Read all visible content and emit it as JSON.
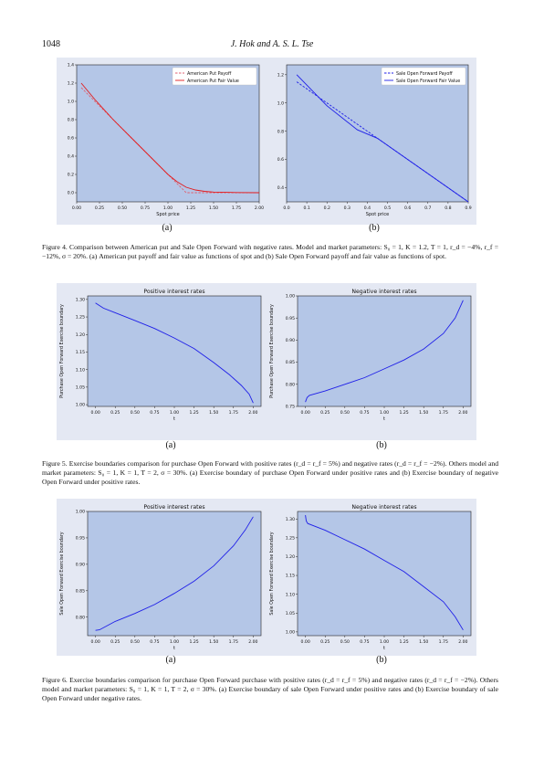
{
  "header": {
    "page_number": "1048",
    "running_head": "J. Hok and A. S. L. Tse"
  },
  "figures": [
    {
      "caption": "Figure 4. Comparison between American put and Sale Open Forward with negative rates. Model and market parameters: S₀ = 1, K = 1.2, T = 1, r_d = −4%, r_f = −12%, σ = 20%. (a) American put payoff and fair value as functions of spot and (b) Sale Open Forward payoff and fair value as functions of spot.",
      "sublabels": [
        "(a)",
        "(b)"
      ]
    },
    {
      "caption": "Figure 5. Exercise boundaries comparison for purchase Open Forward with positive rates (r_d = r_f = 5%) and negative rates (r_d = r_f = −2%). Others model and market parameters: S₀ = 1, K = 1, T = 2, σ = 30%. (a) Exercise boundary of purchase Open Forward under positive rates and (b) Exercise boundary of negative Open Forward under positive rates.",
      "sublabels": [
        "(a)",
        "(b)"
      ]
    },
    {
      "caption": "Figure 6. Exercise boundaries comparison for purchase Open Forward purchase with positive rates (r_d = r_f = 5%) and negative rates (r_d = r_f = −2%). Others model and market parameters: S₀ = 1, K = 1, T = 2, σ = 30%. (a) Exercise boundary of sale Open Forward under positive rates and (b) Exercise boundary of sale Open Forward under negative rates.",
      "sublabels": [
        "(a)",
        "(b)"
      ]
    }
  ],
  "colors": {
    "plot_bg": "#b4c6e7",
    "panel_bg": "#e4e8f3",
    "red": "#e31a1c",
    "blue": "#1f1fe8"
  },
  "chart_data": [
    {
      "id": "f4a",
      "type": "line",
      "title": "",
      "xlabel": "Spot price",
      "ylabel": "",
      "xlim": [
        0,
        2
      ],
      "ylim": [
        -0.1,
        1.4
      ],
      "xticks": [
        "0.00",
        "0.25",
        "0.50",
        "0.75",
        "1.00",
        "1.25",
        "1.50",
        "1.75",
        "2.00"
      ],
      "xtick_values": [
        0,
        0.25,
        0.5,
        0.75,
        1,
        1.25,
        1.5,
        1.75,
        2
      ],
      "yticks": [
        "0.0",
        "0.2",
        "0.4",
        "0.6",
        "0.8",
        "1.0",
        "1.2",
        "1.4"
      ],
      "ytick_values": [
        0,
        0.2,
        0.4,
        0.6,
        0.8,
        1,
        1.2,
        1.4
      ],
      "legend": "top-right",
      "series": [
        {
          "name": "American Put Payoff",
          "color": "#e06070",
          "dash": true,
          "x": [
            0.05,
            0.3,
            0.6,
            0.9,
            1.1,
            1.2,
            1.4,
            1.7,
            2.0
          ],
          "y": [
            1.15,
            0.9,
            0.6,
            0.3,
            0.1,
            0.0,
            0.0,
            0.0,
            0.0
          ]
        },
        {
          "name": "American Put Fair Value",
          "color": "#e31a1c",
          "dash": false,
          "x": [
            0.05,
            0.2,
            0.4,
            0.6,
            0.8,
            1.0,
            1.1,
            1.2,
            1.3,
            1.4,
            1.5,
            1.75,
            2.0
          ],
          "y": [
            1.2,
            1.02,
            0.8,
            0.6,
            0.4,
            0.2,
            0.12,
            0.06,
            0.03,
            0.015,
            0.007,
            0.002,
            0.0
          ]
        }
      ]
    },
    {
      "id": "f4b",
      "type": "line",
      "title": "",
      "xlabel": "Spot price",
      "ylabel": "",
      "xlim": [
        0,
        0.9
      ],
      "ylim": [
        0.3,
        1.27
      ],
      "xticks": [
        "0.0",
        "0.1",
        "0.2",
        "0.3",
        "0.4",
        "0.5",
        "0.6",
        "0.7",
        "0.8",
        "0.9"
      ],
      "xtick_values": [
        0,
        0.1,
        0.2,
        0.3,
        0.4,
        0.5,
        0.6,
        0.7,
        0.8,
        0.9
      ],
      "yticks": [
        "0.4",
        "0.6",
        "0.8",
        "1.0",
        "1.2"
      ],
      "ytick_values": [
        0.4,
        0.6,
        0.8,
        1.0,
        1.2
      ],
      "legend": "top-right",
      "series": [
        {
          "name": "Sale Open Forward Payoff",
          "color": "#1f1fe8",
          "dash": true,
          "x": [
            0.05,
            0.45,
            0.9
          ],
          "y": [
            1.15,
            0.75,
            0.3
          ]
        },
        {
          "name": "Sale Open Forward Fair Value",
          "color": "#1f1fe8",
          "dash": false,
          "x": [
            0.05,
            0.2,
            0.35,
            0.45,
            0.6,
            0.75,
            0.9
          ],
          "y": [
            1.2,
            0.98,
            0.81,
            0.75,
            0.6,
            0.45,
            0.3
          ]
        }
      ]
    },
    {
      "id": "f5a",
      "type": "line",
      "title": "Positive interest rates",
      "xlabel": "t",
      "ylabel": "Purchase Open Forward Exercise boundary",
      "xlim": [
        -0.1,
        2.1
      ],
      "ylim": [
        0.995,
        1.31
      ],
      "xticks": [
        "0.00",
        "0.25",
        "0.50",
        "0.75",
        "1.00",
        "1.25",
        "1.50",
        "1.75",
        "2.00"
      ],
      "xtick_values": [
        0,
        0.25,
        0.5,
        0.75,
        1,
        1.25,
        1.5,
        1.75,
        2
      ],
      "yticks": [
        "1.00",
        "1.05",
        "1.10",
        "1.15",
        "1.20",
        "1.25",
        "1.30"
      ],
      "ytick_values": [
        1.0,
        1.05,
        1.1,
        1.15,
        1.2,
        1.25,
        1.3
      ],
      "series": [
        {
          "name": "",
          "color": "#1f1fe8",
          "dash": false,
          "x": [
            0,
            0.1,
            0.25,
            0.5,
            0.75,
            1.0,
            1.25,
            1.5,
            1.7,
            1.85,
            1.95,
            2.0
          ],
          "y": [
            1.29,
            1.275,
            1.262,
            1.24,
            1.217,
            1.19,
            1.16,
            1.12,
            1.085,
            1.055,
            1.03,
            1.005
          ]
        }
      ]
    },
    {
      "id": "f5b",
      "type": "line",
      "title": "Negative interest rates",
      "xlabel": "t",
      "ylabel": "Purchase Open Forward Exercise boundary",
      "xlim": [
        -0.1,
        2.1
      ],
      "ylim": [
        0.75,
        1.0
      ],
      "xticks": [
        "0.00",
        "0.25",
        "0.50",
        "0.75",
        "1.00",
        "1.25",
        "1.50",
        "1.75",
        "2.00"
      ],
      "xtick_values": [
        0,
        0.25,
        0.5,
        0.75,
        1,
        1.25,
        1.5,
        1.75,
        2
      ],
      "yticks": [
        "0.75",
        "0.80",
        "0.85",
        "0.90",
        "0.95",
        "1.00"
      ],
      "ytick_values": [
        0.75,
        0.8,
        0.85,
        0.9,
        0.95,
        1.0
      ],
      "series": [
        {
          "name": "",
          "color": "#1f1fe8",
          "dash": false,
          "x": [
            0,
            0.02,
            0.05,
            0.25,
            0.5,
            0.75,
            1.0,
            1.25,
            1.5,
            1.75,
            1.9,
            2.0
          ],
          "y": [
            0.76,
            0.77,
            0.775,
            0.785,
            0.8,
            0.815,
            0.835,
            0.855,
            0.88,
            0.915,
            0.95,
            0.99
          ]
        }
      ]
    },
    {
      "id": "f6a",
      "type": "line",
      "title": "Positive interest rates",
      "xlabel": "t",
      "ylabel": "Sale Open Forward Exercise boundary",
      "xlim": [
        -0.1,
        2.1
      ],
      "ylim": [
        0.765,
        1.0
      ],
      "xticks": [
        "0.00",
        "0.25",
        "0.50",
        "0.75",
        "1.00",
        "1.25",
        "1.50",
        "1.75",
        "2.00"
      ],
      "xtick_values": [
        0,
        0.25,
        0.5,
        0.75,
        1,
        1.25,
        1.5,
        1.75,
        2
      ],
      "yticks": [
        "0.80",
        "0.85",
        "0.90",
        "0.95",
        "1.00"
      ],
      "ytick_values": [
        0.8,
        0.85,
        0.9,
        0.95,
        1.0
      ],
      "series": [
        {
          "name": "",
          "color": "#1f1fe8",
          "dash": false,
          "x": [
            0,
            0.05,
            0.25,
            0.5,
            0.75,
            1.0,
            1.25,
            1.5,
            1.75,
            1.9,
            2.0
          ],
          "y": [
            0.775,
            0.776,
            0.792,
            0.807,
            0.824,
            0.845,
            0.868,
            0.897,
            0.935,
            0.965,
            0.99
          ]
        }
      ]
    },
    {
      "id": "f6b",
      "type": "line",
      "title": "Negative interest rates",
      "xlabel": "t",
      "ylabel": "Sale Open Forward Exercise boundary",
      "xlim": [
        -0.1,
        2.1
      ],
      "ylim": [
        0.99,
        1.32
      ],
      "xticks": [
        "0.00",
        "0.25",
        "0.50",
        "0.75",
        "1.00",
        "1.25",
        "1.50",
        "1.75",
        "2.00"
      ],
      "xtick_values": [
        0,
        0.25,
        0.5,
        0.75,
        1,
        1.25,
        1.5,
        1.75,
        2
      ],
      "yticks": [
        "1.00",
        "1.05",
        "1.10",
        "1.15",
        "1.20",
        "1.25",
        "1.30"
      ],
      "ytick_values": [
        1.0,
        1.05,
        1.1,
        1.15,
        1.2,
        1.25,
        1.3
      ],
      "series": [
        {
          "name": "",
          "color": "#1f1fe8",
          "dash": false,
          "x": [
            0,
            0.01,
            0.03,
            0.25,
            0.5,
            0.75,
            1.0,
            1.25,
            1.5,
            1.75,
            1.9,
            2.0
          ],
          "y": [
            1.31,
            1.295,
            1.288,
            1.27,
            1.245,
            1.22,
            1.19,
            1.16,
            1.12,
            1.08,
            1.04,
            1.005
          ]
        }
      ]
    }
  ]
}
